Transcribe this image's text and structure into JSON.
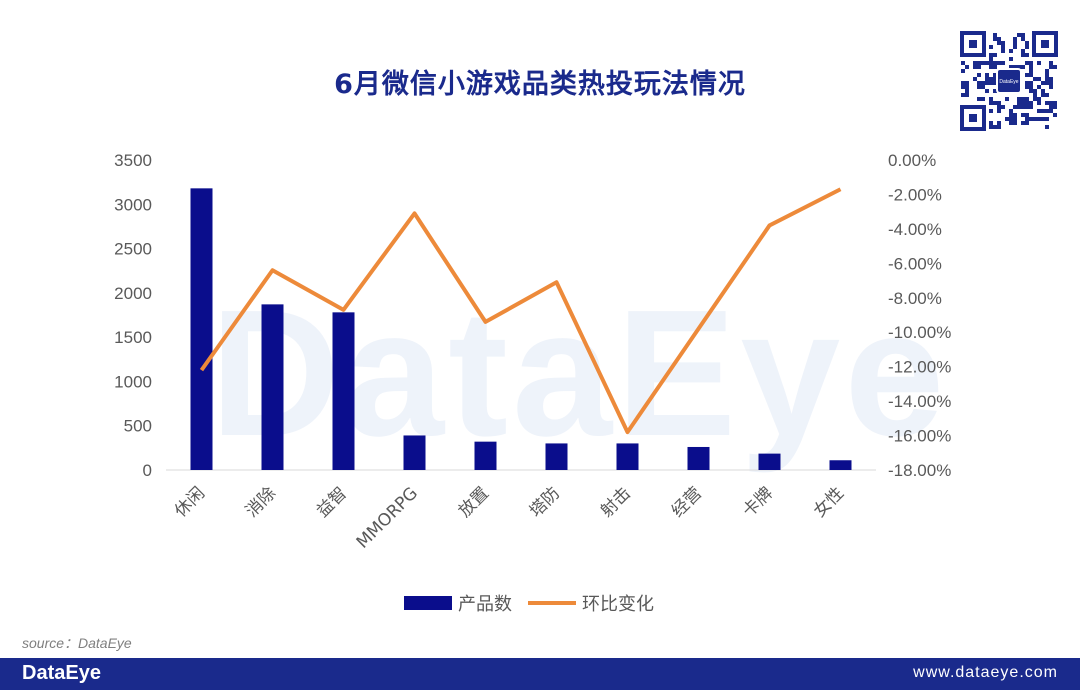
{
  "header": {
    "title": "6月微信小游戏品类热投玩法情况"
  },
  "watermark": "DataEye",
  "qr_code": {
    "center_label": "DataEye"
  },
  "chart_data": {
    "type": "bar+line",
    "categories": [
      "休闲",
      "消除",
      "益智",
      "MMORPG",
      "放置",
      "塔防",
      "射击",
      "经营",
      "卡牌",
      "女性"
    ],
    "series": [
      {
        "name": "产品数",
        "type": "bar",
        "axis": "left",
        "color": "#0a0d8c",
        "values": [
          3180,
          1870,
          1780,
          390,
          320,
          300,
          300,
          260,
          185,
          110
        ]
      },
      {
        "name": "环比变化",
        "type": "line",
        "axis": "right",
        "color": "#ed8a3a",
        "values": [
          -12.2,
          -6.4,
          -8.7,
          -3.1,
          -9.4,
          -7.1,
          -15.8,
          -9.8,
          -3.8,
          -1.7
        ]
      }
    ],
    "left_axis": {
      "min": 0,
      "max": 3500,
      "step": 500,
      "tick_labels": [
        "0",
        "500",
        "1000",
        "1500",
        "2000",
        "2500",
        "3000",
        "3500"
      ]
    },
    "right_axis": {
      "min": -18,
      "max": 0,
      "step": 2,
      "tick_labels": [
        "-18.00%",
        "-16.00%",
        "-14.00%",
        "-12.00%",
        "-10.00%",
        "-8.00%",
        "-6.00%",
        "-4.00%",
        "-2.00%",
        "0.00%"
      ]
    },
    "legend_position": "bottom",
    "grid": false
  },
  "legend": {
    "bar_label": "产品数",
    "line_label": "环比变化"
  },
  "source": "source：DataEye",
  "footer": {
    "brand": "DataEye",
    "url": "www.dataeye.com"
  }
}
